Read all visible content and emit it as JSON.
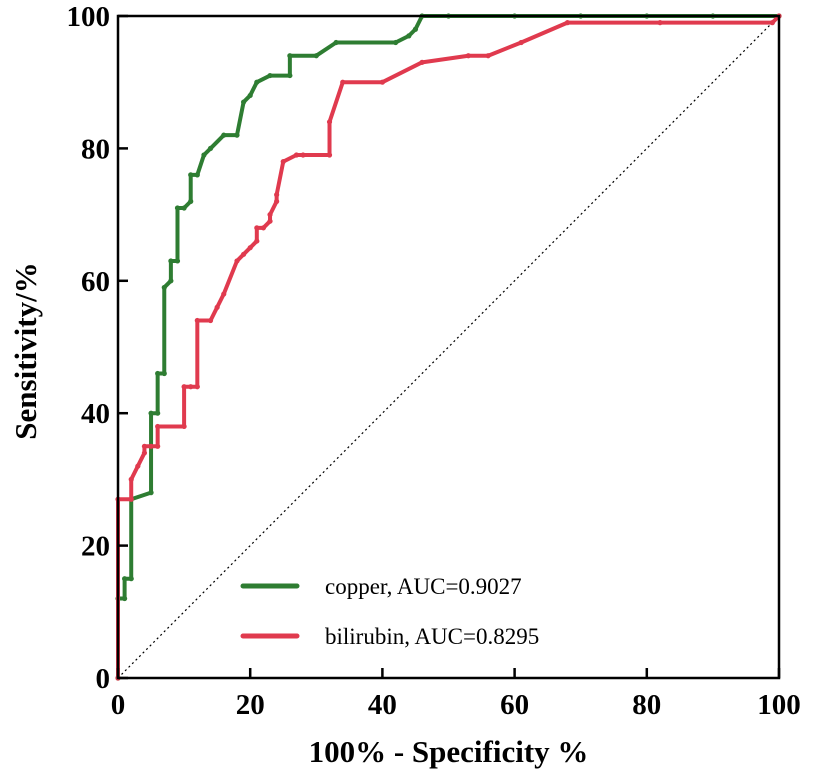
{
  "chart_data": {
    "type": "line",
    "title": "",
    "xlabel": "100% - Specificity %",
    "ylabel": "Sensitivity/%",
    "xlim": [
      0,
      100
    ],
    "ylim": [
      0,
      100
    ],
    "xticks": [
      "0",
      "20",
      "40",
      "60",
      "80",
      "100"
    ],
    "yticks": [
      "0",
      "20",
      "40",
      "60",
      "80",
      "100"
    ],
    "reference_line": {
      "x": [
        0,
        100
      ],
      "y": [
        0,
        100
      ],
      "style": "dotted"
    },
    "legend_position": "bottom-center",
    "series": [
      {
        "name": "copper",
        "label": "copper,  AUC=0.9027",
        "auc": 0.9027,
        "color": "#2e7d32",
        "points": [
          [
            0,
            0
          ],
          [
            0,
            12
          ],
          [
            1,
            12
          ],
          [
            1,
            15
          ],
          [
            2,
            15
          ],
          [
            2,
            27
          ],
          [
            5,
            28
          ],
          [
            5,
            40
          ],
          [
            6,
            40
          ],
          [
            6,
            46
          ],
          [
            7,
            46
          ],
          [
            7,
            59
          ],
          [
            8,
            60
          ],
          [
            8,
            63
          ],
          [
            9,
            63
          ],
          [
            9,
            71
          ],
          [
            10,
            71
          ],
          [
            11,
            72
          ],
          [
            11,
            76
          ],
          [
            12,
            76
          ],
          [
            13,
            79
          ],
          [
            14,
            80
          ],
          [
            16,
            82
          ],
          [
            18,
            82
          ],
          [
            19,
            87
          ],
          [
            20,
            88
          ],
          [
            21,
            90
          ],
          [
            23,
            91
          ],
          [
            26,
            91
          ],
          [
            26,
            94
          ],
          [
            30,
            94
          ],
          [
            33,
            96
          ],
          [
            42,
            96
          ],
          [
            44,
            97
          ],
          [
            45,
            98
          ],
          [
            46,
            100
          ],
          [
            50,
            100
          ],
          [
            60,
            100
          ],
          [
            70,
            100
          ],
          [
            80,
            100
          ],
          [
            90,
            100
          ],
          [
            100,
            100
          ]
        ]
      },
      {
        "name": "bilirubin",
        "label": "bilirubin,  AUC=0.8295",
        "auc": 0.8295,
        "color": "#e03a4e",
        "points": [
          [
            0,
            0
          ],
          [
            0,
            27
          ],
          [
            2,
            27
          ],
          [
            2,
            30
          ],
          [
            3,
            32
          ],
          [
            4,
            34
          ],
          [
            4,
            35
          ],
          [
            5,
            35
          ],
          [
            6,
            35
          ],
          [
            6,
            38
          ],
          [
            10,
            38
          ],
          [
            10,
            44
          ],
          [
            11,
            44
          ],
          [
            12,
            44
          ],
          [
            12,
            54
          ],
          [
            14,
            54
          ],
          [
            15,
            56
          ],
          [
            16,
            58
          ],
          [
            18,
            63
          ],
          [
            19,
            64
          ],
          [
            20,
            65
          ],
          [
            21,
            66
          ],
          [
            21,
            68
          ],
          [
            22,
            68
          ],
          [
            23,
            69
          ],
          [
            23,
            70
          ],
          [
            24,
            72
          ],
          [
            24,
            73
          ],
          [
            25,
            78
          ],
          [
            27,
            79
          ],
          [
            28,
            79
          ],
          [
            32,
            79
          ],
          [
            32,
            84
          ],
          [
            34,
            90
          ],
          [
            40,
            90
          ],
          [
            46,
            93
          ],
          [
            53,
            94
          ],
          [
            56,
            94
          ],
          [
            61,
            96
          ],
          [
            68,
            99
          ],
          [
            82,
            99
          ],
          [
            99,
            99
          ],
          [
            100,
            100
          ]
        ]
      }
    ]
  }
}
